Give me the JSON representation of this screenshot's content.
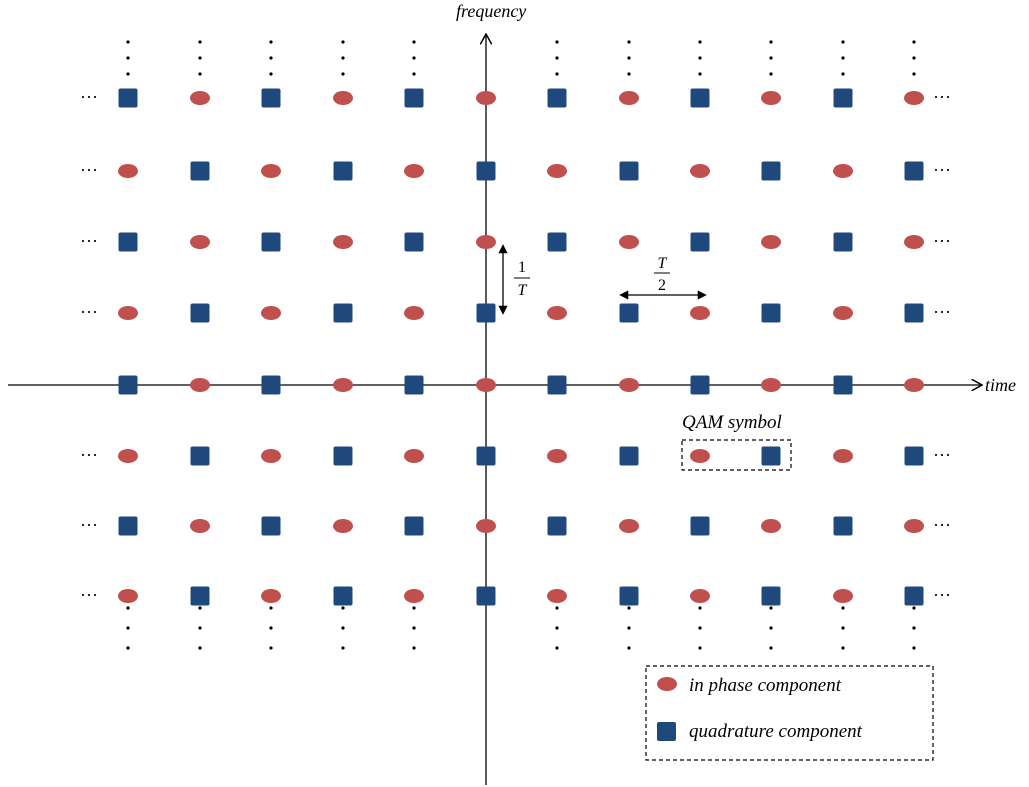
{
  "axes": {
    "x_label": "time",
    "y_label": "frequency"
  },
  "annotations": {
    "freq_spacing": {
      "numerator": "1",
      "denominator": "T"
    },
    "time_spacing": {
      "numerator": "T",
      "denominator": "2"
    },
    "qam_symbol_label": "QAM symbol",
    "ellipsis_h": "···",
    "ellipsis_v": "⋮"
  },
  "legend": {
    "items": [
      {
        "shape": "ellipse",
        "label": "in phase component"
      },
      {
        "shape": "square",
        "label": "quadrature component"
      }
    ]
  },
  "lattice": {
    "columns": 12,
    "rows": 8,
    "pattern": "alternating in-phase and quadrature components; each row offset by one half-symbol period from the next"
  },
  "colors": {
    "in_phase": "#c0504d",
    "quadrature": "#1f497d",
    "axis": "#000000"
  },
  "icons": {
    "in_phase": "red-ellipse-icon",
    "quadrature": "blue-square-icon"
  }
}
